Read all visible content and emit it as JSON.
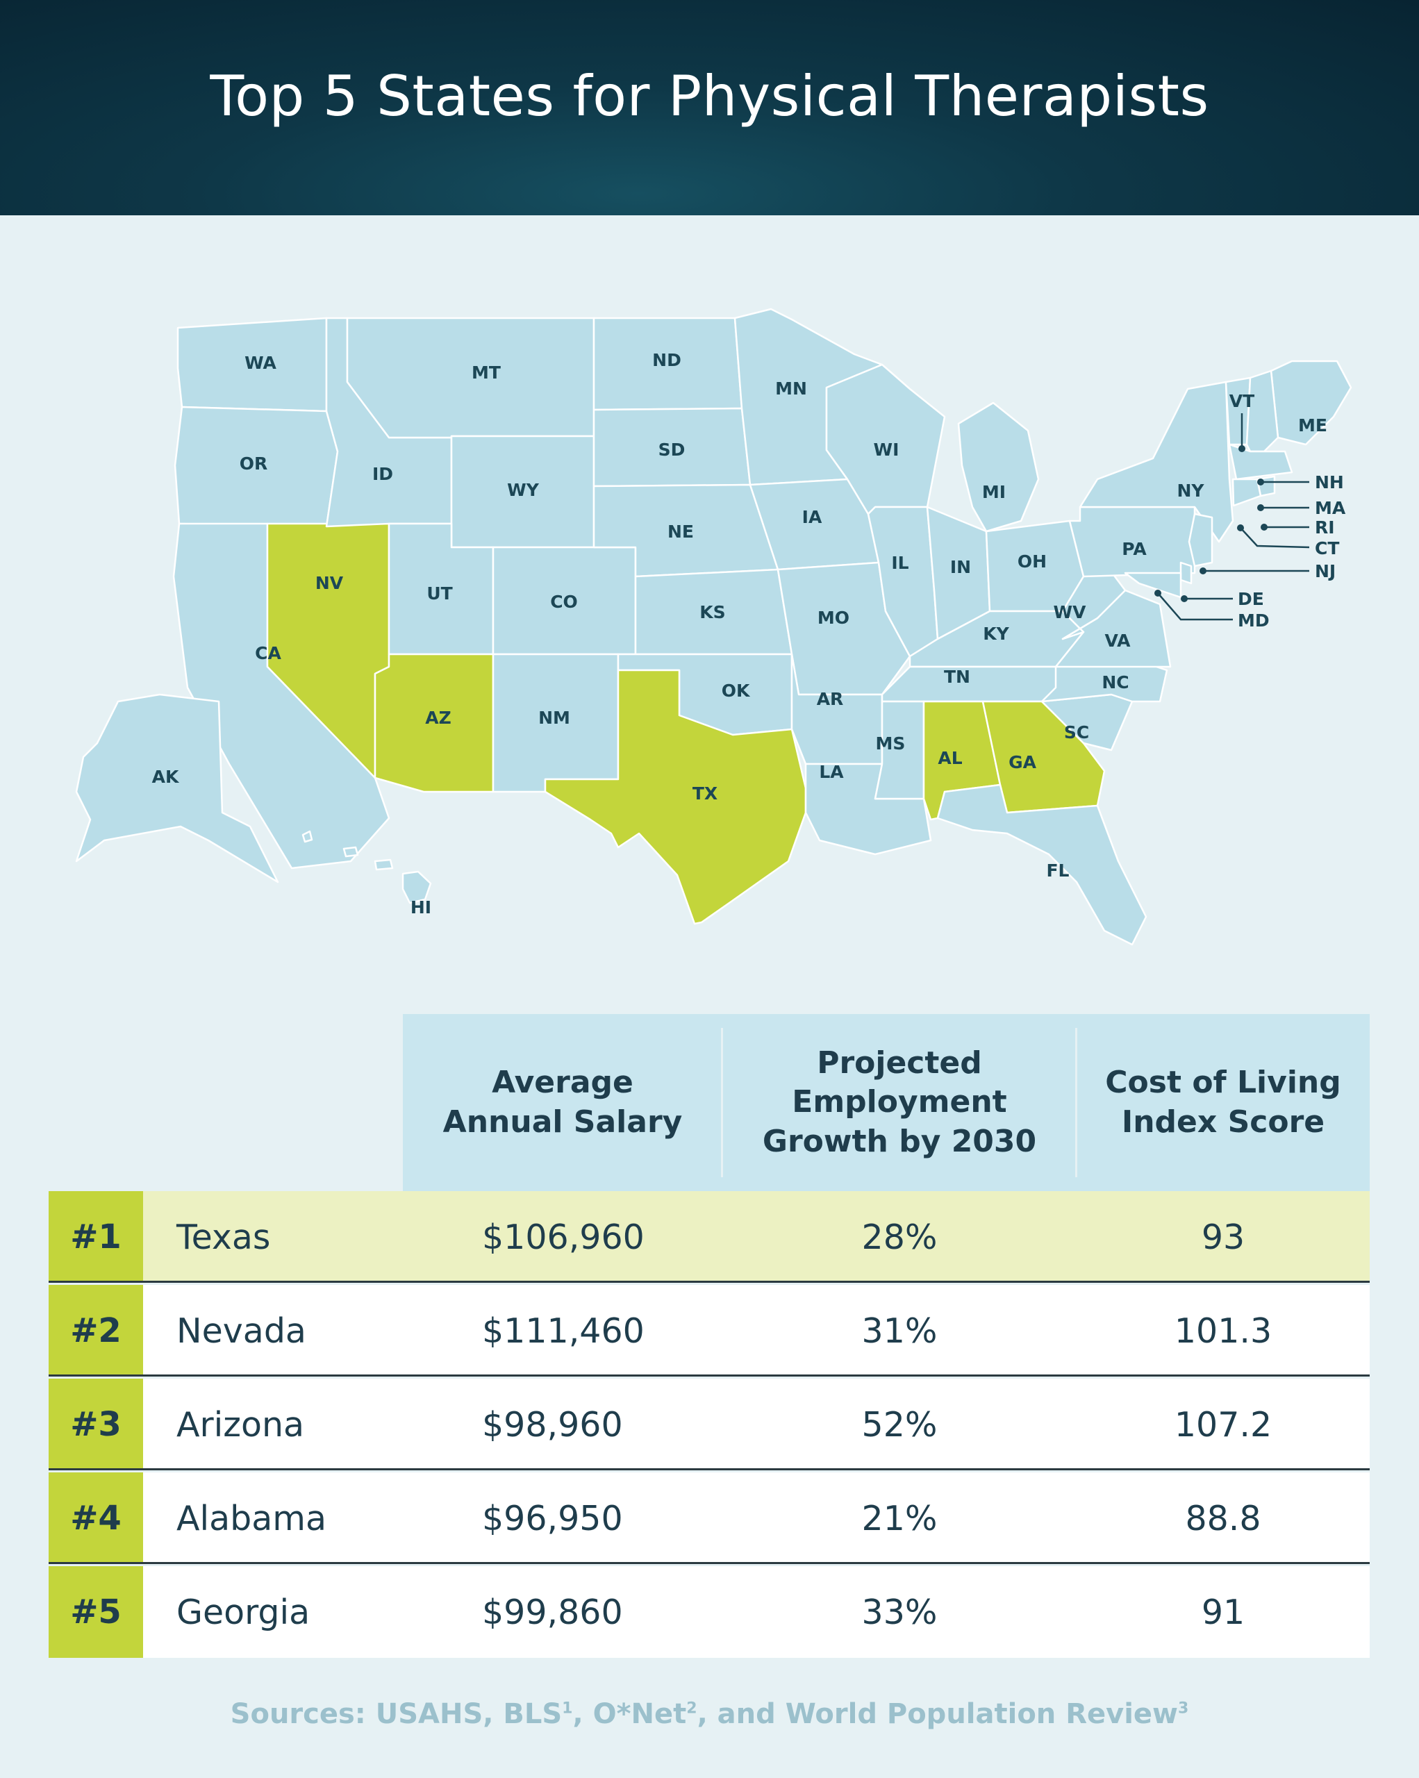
{
  "title": "Top 5 States for Physical Therapists",
  "colors": {
    "highlight": "#c3d53b",
    "state": "#b9dde8",
    "header": "#0e3747",
    "label": "#1c4756"
  },
  "map": {
    "highlighted_states": [
      "NV",
      "AZ",
      "TX",
      "AL",
      "GA"
    ],
    "labels": {
      "WA": "WA",
      "OR": "OR",
      "CA": "CA",
      "NV": "NV",
      "ID": "ID",
      "MT": "MT",
      "WY": "WY",
      "UT": "UT",
      "AZ": "AZ",
      "CO": "CO",
      "NM": "NM",
      "ND": "ND",
      "SD": "SD",
      "NE": "NE",
      "KS": "KS",
      "OK": "OK",
      "TX": "TX",
      "MN": "MN",
      "IA": "IA",
      "MO": "MO",
      "AR": "AR",
      "LA": "LA",
      "WI": "WI",
      "IL": "IL",
      "MS": "MS",
      "MI": "MI",
      "IN": "IN",
      "KY": "KY",
      "TN": "TN",
      "AL": "AL",
      "OH": "OH",
      "GA": "GA",
      "FL": "FL",
      "SC": "SC",
      "NC": "NC",
      "VA": "VA",
      "WV": "WV",
      "PA": "PA",
      "NY": "NY",
      "VT": "VT",
      "ME": "ME",
      "NH": "NH",
      "MA": "MA",
      "RI": "RI",
      "CT": "CT",
      "NJ": "NJ",
      "DE": "DE",
      "MD": "MD",
      "AK": "AK",
      "HI": "HI"
    }
  },
  "table": {
    "headers": {
      "salary": "Average\nAnnual Salary",
      "growth": "Projected\nEmployment\nGrowth by 2030",
      "col": "Cost of Living\nIndex Score"
    },
    "rows": [
      {
        "rank": "#1",
        "state": "Texas",
        "salary": "$106,960",
        "growth": "28%",
        "col": "93"
      },
      {
        "rank": "#2",
        "state": "Nevada",
        "salary": "$111,460",
        "growth": "31%",
        "col": "101.3"
      },
      {
        "rank": "#3",
        "state": "Arizona",
        "salary": "$98,960",
        "growth": "52%",
        "col": "107.2"
      },
      {
        "rank": "#4",
        "state": "Alabama",
        "salary": "$96,950",
        "growth": "21%",
        "col": "88.8"
      },
      {
        "rank": "#5",
        "state": "Georgia",
        "salary": "$99,860",
        "growth": "33%",
        "col": "91"
      }
    ]
  },
  "sources": {
    "text": "Sources: USAHS, BLS",
    "sup1": "1",
    "mid1": ", O*Net",
    "sup2": "2",
    "mid2": ", and World Population Review",
    "sup3": "3"
  }
}
